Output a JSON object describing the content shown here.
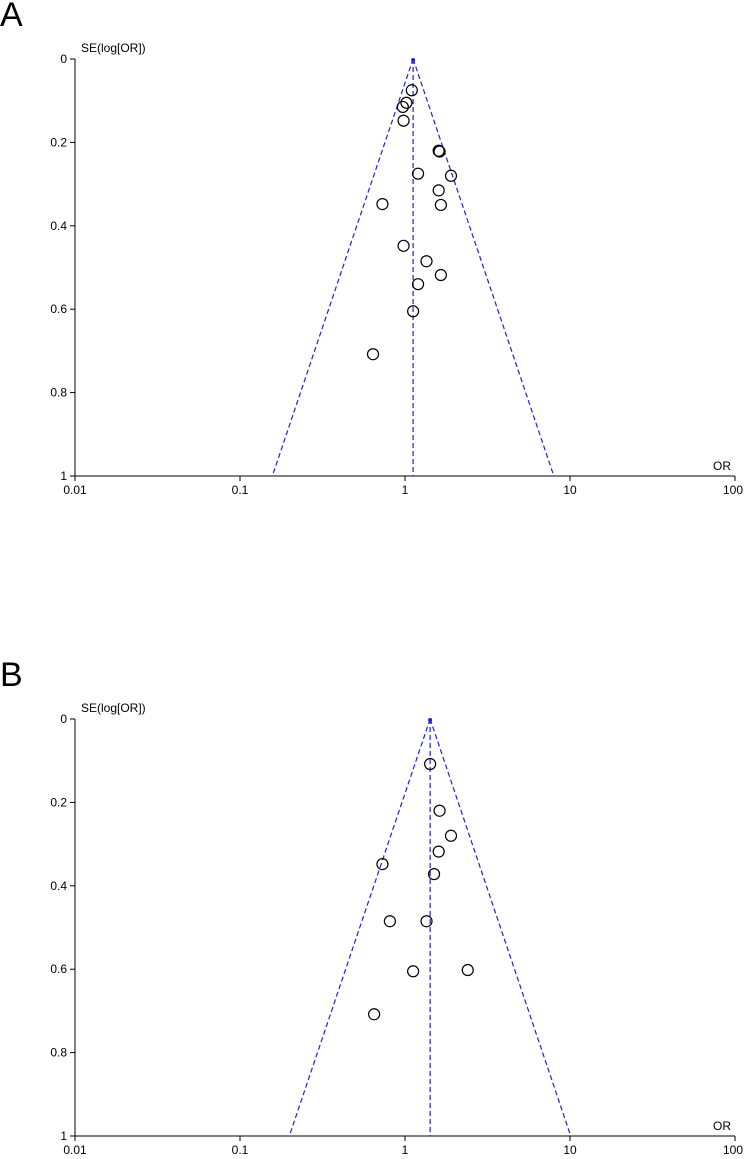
{
  "chart_data": [
    {
      "type": "scatter",
      "panel_label": "A",
      "ylabel": "SE(log[OR])",
      "xlabel": "OR",
      "x_scale": "log",
      "y_reversed": true,
      "xlim": [
        0.01,
        100
      ],
      "ylim": [
        0,
        1
      ],
      "x_ticks": [
        "0.01",
        "0.1",
        "1",
        "10",
        "100"
      ],
      "y_ticks": [
        "0",
        "0.2",
        "0.4",
        "0.6",
        "0.8",
        "1"
      ],
      "pooled_or": 1.12,
      "funnel_base_or": [
        0.157,
        7.98
      ],
      "line_color": "#2222cc",
      "points": [
        {
          "or": 1.1,
          "se": 0.075
        },
        {
          "or": 1.02,
          "se": 0.105
        },
        {
          "or": 0.97,
          "se": 0.115
        },
        {
          "or": 0.98,
          "se": 0.148
        },
        {
          "or": 1.6,
          "se": 0.22
        },
        {
          "or": 1.62,
          "se": 0.222
        },
        {
          "or": 1.2,
          "se": 0.275
        },
        {
          "or": 1.9,
          "se": 0.28
        },
        {
          "or": 1.6,
          "se": 0.315
        },
        {
          "or": 0.73,
          "se": 0.348
        },
        {
          "or": 1.65,
          "se": 0.35
        },
        {
          "or": 0.98,
          "se": 0.448
        },
        {
          "or": 1.35,
          "se": 0.485
        },
        {
          "or": 1.65,
          "se": 0.518
        },
        {
          "or": 1.2,
          "se": 0.54
        },
        {
          "or": 1.12,
          "se": 0.605
        },
        {
          "or": 0.64,
          "se": 0.708
        }
      ]
    },
    {
      "type": "scatter",
      "panel_label": "B",
      "ylabel": "SE(log[OR])",
      "xlabel": "OR",
      "x_scale": "log",
      "y_reversed": true,
      "xlim": [
        0.01,
        100
      ],
      "ylim": [
        0,
        1
      ],
      "x_ticks": [
        "0.01",
        "0.1",
        "1",
        "10",
        "100"
      ],
      "y_ticks": [
        "0",
        "0.2",
        "0.4",
        "0.6",
        "0.8",
        "1"
      ],
      "pooled_or": 1.42,
      "funnel_base_or": [
        0.199,
        10.1
      ],
      "line_color": "#2222cc",
      "points": [
        {
          "or": 1.42,
          "se": 0.108
        },
        {
          "or": 1.62,
          "se": 0.22
        },
        {
          "or": 1.9,
          "se": 0.28
        },
        {
          "or": 1.6,
          "se": 0.318
        },
        {
          "or": 0.73,
          "se": 0.348
        },
        {
          "or": 1.5,
          "se": 0.372
        },
        {
          "or": 0.81,
          "se": 0.485
        },
        {
          "or": 1.35,
          "se": 0.485
        },
        {
          "or": 1.12,
          "se": 0.605
        },
        {
          "or": 2.4,
          "se": 0.602
        },
        {
          "or": 0.65,
          "se": 0.708
        }
      ]
    }
  ]
}
